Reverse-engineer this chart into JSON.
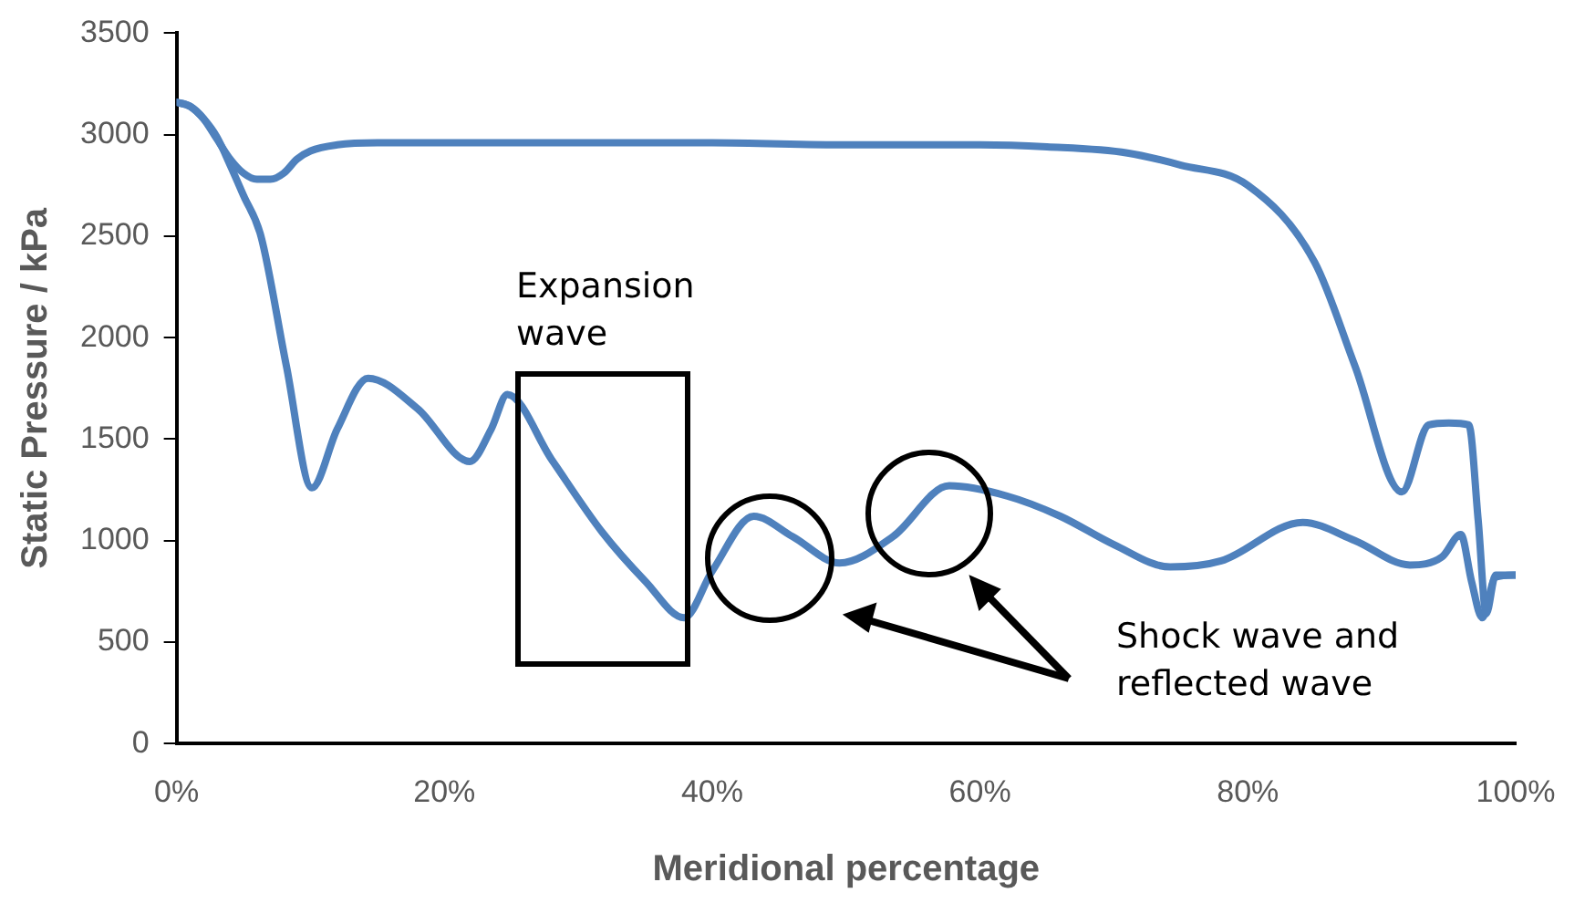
{
  "chart_data": {
    "type": "line",
    "xlabel": "Meridional percentage",
    "ylabel": "Static Pressure / kPa",
    "xlim": [
      0,
      100
    ],
    "xticks": [
      {
        "value": 0,
        "label": "0%"
      },
      {
        "value": 20,
        "label": "20%"
      },
      {
        "value": 40,
        "label": "40%"
      },
      {
        "value": 60,
        "label": "60%"
      },
      {
        "value": 80,
        "label": "80%"
      },
      {
        "value": 100,
        "label": "100%"
      }
    ],
    "ylim": [
      0,
      3500
    ],
    "yticks": [
      0,
      500,
      1000,
      1500,
      2000,
      2500,
      3000,
      3500
    ],
    "grid": false,
    "legend": false,
    "marker": "none",
    "line_style": "solid",
    "series": [
      {
        "color": "#4f81bd",
        "x": [
          0,
          1,
          2,
          3,
          4,
          5,
          6,
          7,
          8,
          9,
          10,
          12,
          15,
          20,
          30,
          40,
          50,
          60,
          65,
          71,
          75,
          80,
          85,
          88,
          91.5,
          93.5,
          95,
          96.5,
          97.2,
          97.8,
          98.5,
          100
        ],
        "values": [
          3160,
          3140,
          3080,
          2980,
          2880,
          2810,
          2780,
          2780,
          2810,
          2880,
          2920,
          2950,
          2960,
          2960,
          2960,
          2960,
          2950,
          2950,
          2940,
          2910,
          2850,
          2750,
          2370,
          1860,
          1240,
          1570,
          1580,
          1570,
          1100,
          640,
          830,
          830
        ]
      },
      {
        "color": "#4f81bd",
        "x": [
          0,
          1,
          2,
          3,
          4,
          5,
          6.3,
          8.2,
          10.1,
          12,
          14.3,
          18,
          21.9,
          23.5,
          24.7,
          28,
          31.8,
          35,
          37.9,
          40,
          43.1,
          46,
          49.5,
          53.5,
          57.7,
          62,
          66,
          70,
          74.2,
          78,
          84.1,
          88,
          92.1,
          94.5,
          95.9,
          96.7,
          97.5,
          98.5,
          100
        ],
        "values": [
          3160,
          3140,
          3080,
          2990,
          2850,
          2700,
          2500,
          1860,
          1260,
          1550,
          1800,
          1650,
          1390,
          1550,
          1720,
          1400,
          1040,
          800,
          620,
          850,
          1120,
          1020,
          890,
          1020,
          1270,
          1220,
          1120,
          980,
          870,
          900,
          1090,
          1000,
          880,
          920,
          1030,
          800,
          620,
          820,
          830
        ]
      }
    ],
    "annotations": [
      "Expansion wave",
      "Shock wave and reflected wave"
    ]
  }
}
